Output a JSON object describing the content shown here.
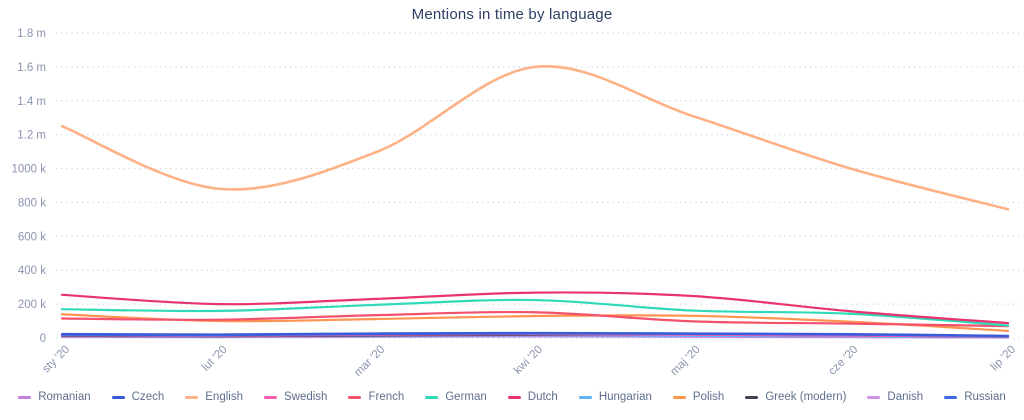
{
  "title": "Mentions in time by language",
  "colors": {
    "title": "#2d3e63",
    "axis_labels": "#8a94af",
    "gridline": "#cfd3dd",
    "legend_text": "#5f6e8e",
    "background": "#ffffff"
  },
  "chart_data": {
    "type": "line",
    "title": "Mentions in time by language",
    "xlabel": "",
    "ylabel": "",
    "x_categories": [
      "sty '20",
      "lut '20",
      "mar '20",
      "kwi '20",
      "maj '20",
      "cze '20",
      "lip '20"
    ],
    "y_tick_labels": [
      "1.8 m",
      "1.6 m",
      "1.4 m",
      "1.2 m",
      "1000 k",
      "800 k",
      "600 k",
      "400 k",
      "200 k",
      "0"
    ],
    "y_tick_values": [
      1800000,
      1600000,
      1400000,
      1200000,
      1000000,
      800000,
      600000,
      400000,
      200000,
      0
    ],
    "ylim": [
      0,
      1800000
    ],
    "grid": "horizontal-dotted",
    "legend_position": "bottom",
    "series": [
      {
        "name": "Romanian",
        "color": "#c07fe0",
        "values": [
          9000,
          7000,
          11000,
          14000,
          10000,
          8000,
          5000
        ]
      },
      {
        "name": "Czech",
        "color": "#3a5bd9",
        "values": [
          24000,
          21000,
          27000,
          30000,
          27000,
          23000,
          13000
        ]
      },
      {
        "name": "English",
        "color": "#ffb186",
        "values": [
          1250000,
          880000,
          1100000,
          1600000,
          1310000,
          1000000,
          760000
        ]
      },
      {
        "name": "Swedish",
        "color": "#ef5fae",
        "values": [
          16000,
          13000,
          19000,
          23000,
          19000,
          14000,
          9000
        ]
      },
      {
        "name": "French",
        "color": "#f4516c",
        "values": [
          115000,
          108000,
          135000,
          152000,
          98000,
          85000,
          70000
        ]
      },
      {
        "name": "German",
        "color": "#2fd9b9",
        "values": [
          170000,
          160000,
          196000,
          224000,
          162000,
          143000,
          74000
        ]
      },
      {
        "name": "Dutch",
        "color": "#e8336e",
        "values": [
          255000,
          200000,
          231000,
          268000,
          248000,
          158000,
          88000
        ]
      },
      {
        "name": "Hungarian",
        "color": "#5fb4f5",
        "values": [
          11000,
          9000,
          13000,
          16000,
          13000,
          10000,
          6000
        ]
      },
      {
        "name": "Polish",
        "color": "#ff9350",
        "values": [
          140000,
          100000,
          112000,
          130000,
          131000,
          96000,
          42000
        ]
      },
      {
        "name": "Greek (modern)",
        "color": "#3f4450",
        "values": [
          13000,
          11000,
          15000,
          19000,
          21000,
          15000,
          8000
        ]
      },
      {
        "name": "Danish",
        "color": "#cf92e8",
        "values": [
          6000,
          5000,
          7000,
          9000,
          7000,
          5000,
          3000
        ]
      },
      {
        "name": "Russian",
        "color": "#3f6ce0",
        "values": [
          19000,
          17000,
          23000,
          27000,
          24000,
          20000,
          11000
        ]
      }
    ]
  }
}
